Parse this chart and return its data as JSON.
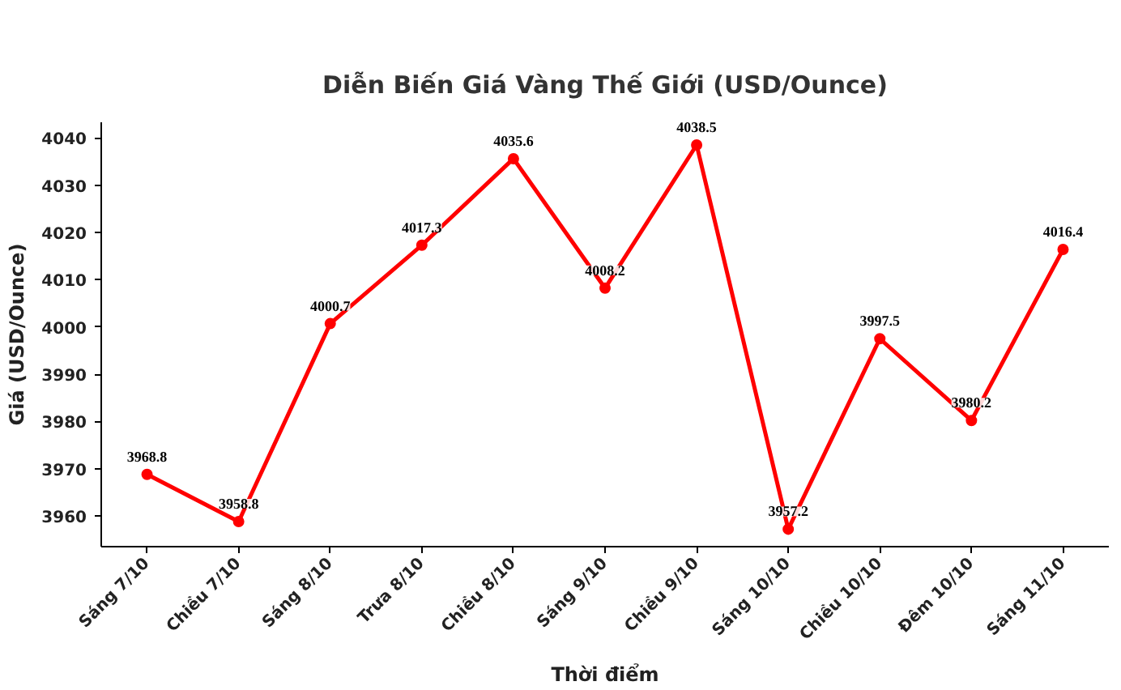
{
  "chart_data": {
    "type": "line",
    "title": "Diễn Biến Giá Vàng Thế Giới (USD/Ounce)",
    "xlabel": "Thời điểm",
    "ylabel": "Giá (USD/Ounce)",
    "categories": [
      "Sáng 7/10",
      "Chiều 7/10",
      "Sáng 8/10",
      "Trưa 8/10",
      "Chiều 8/10",
      "Sáng 9/10",
      "Chiều 9/10",
      "Sáng 10/10",
      "Chiều 10/10",
      "Đêm 10/10",
      "Sáng 11/10"
    ],
    "series": [
      {
        "color": "#ff0000",
        "values": [
          3968.8,
          3958.8,
          4000.7,
          4017.3,
          4035.6,
          4008.2,
          4038.5,
          3957.2,
          3997.5,
          3980.2,
          4016.4
        ]
      }
    ],
    "ylim": [
      3953.5,
      4043.3
    ],
    "yticks": [
      3960,
      3970,
      3980,
      3990,
      4000,
      4010,
      4020,
      4030,
      4040
    ],
    "data_labels": true,
    "marker": "circle",
    "line_style": "solid",
    "grid": false
  }
}
